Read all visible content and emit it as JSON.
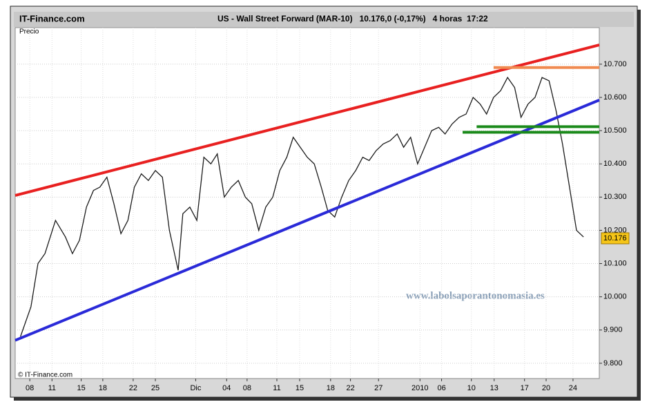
{
  "header": {
    "site": "IT-Finance.com",
    "title": "US - Wall Street Forward (MAR-10)   10.176,0 (-0,17%)   4 horas  17:22"
  },
  "chart_data": {
    "type": "line",
    "y_label": "Precio",
    "copyright": "© IT-Finance.com",
    "watermark": "www.labolsaporantonomasia.es",
    "last_price": 10.176,
    "grid": true,
    "xlim": [
      0,
      100
    ],
    "xticks": [
      {
        "value": 2.5,
        "label": "08"
      },
      {
        "value": 6.3,
        "label": "11"
      },
      {
        "value": 11.3,
        "label": "15"
      },
      {
        "value": 15,
        "label": "18"
      },
      {
        "value": 20.2,
        "label": "22"
      },
      {
        "value": 24,
        "label": "25"
      },
      {
        "value": 30.9,
        "label": "Dic"
      },
      {
        "value": 36.2,
        "label": "04"
      },
      {
        "value": 39.7,
        "label": "08"
      },
      {
        "value": 44.8,
        "label": "11"
      },
      {
        "value": 48.7,
        "label": "15"
      },
      {
        "value": 54,
        "label": "18"
      },
      {
        "value": 57.4,
        "label": "22"
      },
      {
        "value": 62.2,
        "label": "27"
      },
      {
        "value": 69.3,
        "label": "2010"
      },
      {
        "value": 73,
        "label": "06"
      },
      {
        "value": 78.1,
        "label": "10"
      },
      {
        "value": 82,
        "label": "13"
      },
      {
        "value": 87.2,
        "label": "17"
      },
      {
        "value": 90.9,
        "label": "20"
      },
      {
        "value": 95.5,
        "label": "24"
      }
    ],
    "ylim": [
      9.754,
      10.81
    ],
    "yticks": [
      {
        "value": 9.8,
        "label": "9.800"
      },
      {
        "value": 9.9,
        "label": "9.900"
      },
      {
        "value": 10,
        "label": "10.000"
      },
      {
        "value": 10.1,
        "label": "10.100"
      },
      {
        "value": 10.2,
        "label": "10.200"
      },
      {
        "value": 10.3,
        "label": "10.300"
      },
      {
        "value": 10.4,
        "label": "10.400"
      },
      {
        "value": 10.5,
        "label": "10.500"
      },
      {
        "value": 10.6,
        "label": "10.600"
      },
      {
        "value": 10.7,
        "label": "10.700"
      }
    ],
    "series": [
      {
        "color": "#1a1a1a",
        "x": [
          0.9,
          2.7,
          3.9,
          5.1,
          6.9,
          8.6,
          9.8,
          11.0,
          12.2,
          13.4,
          14.5,
          15.7,
          16.9,
          18.1,
          19.3,
          20.4,
          21.6,
          22.8,
          24.0,
          25.2,
          26.4,
          27.9,
          28.7,
          29.9,
          31.1,
          32.3,
          33.5,
          34.6,
          35.8,
          37.0,
          38.2,
          39.4,
          40.5,
          41.7,
          42.9,
          44.1,
          45.3,
          46.5,
          47.6,
          48.8,
          50.0,
          51.2,
          52.4,
          53.5,
          54.7,
          55.9,
          57.1,
          58.3,
          59.5,
          60.6,
          61.8,
          63.0,
          64.2,
          65.4,
          66.5,
          67.7,
          68.9,
          70.1,
          71.3,
          72.5,
          73.6,
          74.8,
          76.0,
          77.2,
          78.4,
          79.6,
          80.7,
          81.9,
          83.1,
          84.3,
          85.5,
          86.6,
          87.8,
          89.0,
          90.2,
          91.4,
          92.6,
          93.7,
          94.9,
          96.1,
          97.3
        ],
        "values": [
          9.88,
          9.97,
          10.1,
          10.13,
          10.23,
          10.18,
          10.13,
          10.17,
          10.27,
          10.32,
          10.33,
          10.36,
          10.28,
          10.19,
          10.23,
          10.33,
          10.37,
          10.35,
          10.38,
          10.36,
          10.2,
          10.08,
          10.25,
          10.27,
          10.23,
          10.42,
          10.4,
          10.43,
          10.3,
          10.33,
          10.35,
          10.3,
          10.28,
          10.2,
          10.27,
          10.3,
          10.38,
          10.42,
          10.48,
          10.45,
          10.42,
          10.4,
          10.33,
          10.26,
          10.24,
          10.3,
          10.35,
          10.38,
          10.42,
          10.41,
          10.44,
          10.46,
          10.47,
          10.49,
          10.45,
          10.48,
          10.4,
          10.45,
          10.5,
          10.51,
          10.49,
          10.52,
          10.54,
          10.55,
          10.6,
          10.58,
          10.55,
          10.6,
          10.62,
          10.66,
          10.63,
          10.54,
          10.58,
          10.6,
          10.66,
          10.65,
          10.56,
          10.46,
          10.33,
          10.2,
          10.18
        ]
      }
    ],
    "lines": [
      {
        "color": "#e82020",
        "x": [
          0,
          100
        ],
        "y": [
          10.305,
          10.758
        ]
      },
      {
        "color": "#2a2ad8",
        "x": [
          0,
          100
        ],
        "y": [
          9.869,
          10.592
        ]
      },
      {
        "color": "#f08a50",
        "x": [
          81.9,
          100
        ],
        "y": [
          10.69,
          10.69
        ]
      },
      {
        "color": "#1a8a1a",
        "x": [
          79.0,
          100
        ],
        "y": [
          10.512,
          10.512
        ]
      },
      {
        "color": "#1a8a1a",
        "x": [
          76.6,
          100
        ],
        "y": [
          10.495,
          10.495
        ]
      }
    ]
  }
}
